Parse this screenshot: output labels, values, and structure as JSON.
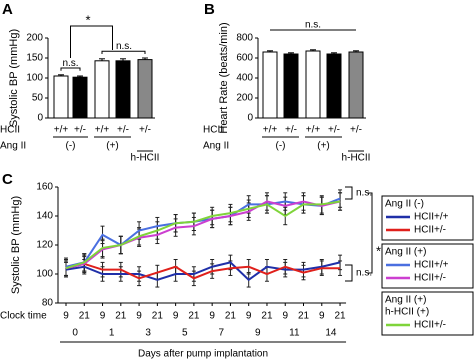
{
  "chart_data": [
    {
      "type": "bar",
      "panel": "A",
      "ylabel": "Systolic BP (mmHg)",
      "categories": [
        "+/+",
        "+/-",
        "+/+",
        "+/-",
        "+/-"
      ],
      "row_labels": [
        "HCII",
        "Ang II"
      ],
      "groups": [
        "(-)",
        "(+)",
        "h-HCII"
      ],
      "values": [
        105,
        102,
        143,
        143,
        146
      ],
      "errors": [
        3,
        3,
        5,
        5,
        4
      ],
      "colors": [
        "#ffffff",
        "#000000",
        "#ffffff",
        "#000000",
        "#888888"
      ],
      "ylim": [
        0,
        200
      ],
      "yticks": [
        0,
        50,
        100,
        150,
        200
      ],
      "annotations": [
        "n.s.",
        "*",
        "n.s."
      ]
    },
    {
      "type": "bar",
      "panel": "B",
      "ylabel": "Heart Rate (beats/min)",
      "categories": [
        "+/+",
        "+/-",
        "+/+",
        "+/-",
        "+/-"
      ],
      "row_labels": [
        "HCII",
        "Ang II"
      ],
      "groups": [
        "(-)",
        "(+)",
        "h-HCII"
      ],
      "values": [
        660,
        640,
        670,
        640,
        660
      ],
      "errors": [
        12,
        12,
        12,
        12,
        12
      ],
      "colors": [
        "#ffffff",
        "#000000",
        "#ffffff",
        "#000000",
        "#888888"
      ],
      "ylim": [
        0,
        800
      ],
      "yticks": [
        0,
        200,
        400,
        600,
        800
      ],
      "annotations": [
        "n.s."
      ]
    },
    {
      "type": "line",
      "panel": "C",
      "ylabel": "Systolic BP (mmHg)",
      "row_label": "Clock time",
      "xlabel": "Days after pump implantation",
      "categories": [
        "9",
        "21",
        "9",
        "21",
        "9",
        "21",
        "9",
        "21",
        "9",
        "21",
        "9",
        "21",
        "9",
        "21",
        "9",
        "21"
      ],
      "days": [
        "0",
        "1",
        "3",
        "5",
        "7",
        "9",
        "11",
        "14"
      ],
      "ylim": [
        80,
        160
      ],
      "yticks": [
        80,
        100,
        120,
        140,
        160
      ],
      "series": [
        {
          "name": "HCII+/+",
          "group": [
            "Ang II (-)"
          ],
          "color": "#1f2fa8",
          "error": 5,
          "values": [
            103,
            105,
            100,
            100,
            100,
            96,
            100,
            100,
            105,
            108,
            96,
            105,
            103,
            103,
            105,
            108
          ]
        },
        {
          "name": "HCII+/-",
          "group": [
            "Ang II (-)"
          ],
          "color": "#e0201b",
          "error": 5,
          "values": [
            104,
            107,
            103,
            103,
            97,
            101,
            105,
            97,
            102,
            104,
            105,
            100,
            105,
            101,
            104,
            104
          ]
        },
        {
          "name": "HCII+/+",
          "group": [
            "Ang II (+)"
          ],
          "color": "#4a6fe0",
          "error": 6,
          "values": [
            105,
            108,
            127,
            120,
            130,
            133,
            135,
            136,
            138,
            140,
            148,
            148,
            150,
            148,
            147,
            152
          ]
        },
        {
          "name": "HCII+/-",
          "group": [
            "Ang II (+)"
          ],
          "color": "#cc3fd0",
          "error": 6,
          "values": [
            104,
            107,
            117,
            120,
            125,
            127,
            132,
            133,
            138,
            140,
            143,
            150,
            147,
            150,
            147,
            150
          ]
        },
        {
          "name": "HCII+/-",
          "group": [
            "Ang II  (+)",
            "h-HCII (+)"
          ],
          "color": "#7fd43a",
          "error": 6,
          "values": [
            104,
            108,
            118,
            120,
            126,
            130,
            135,
            136,
            140,
            142,
            145,
            148,
            140,
            148,
            148,
            150
          ]
        }
      ],
      "annotations": [
        "n.s.",
        "n.s.",
        "*"
      ]
    }
  ]
}
